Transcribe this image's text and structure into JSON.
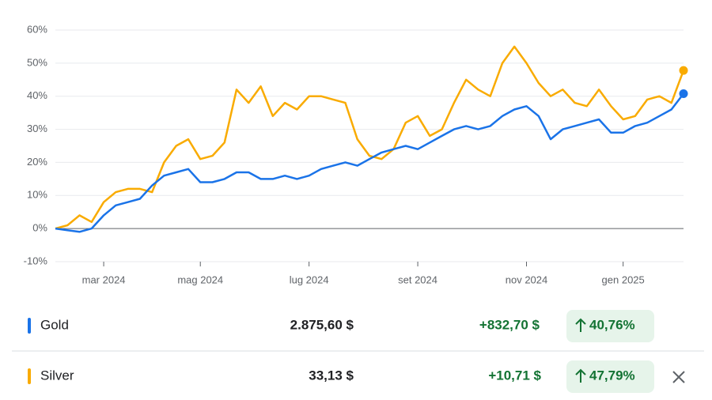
{
  "chart_data": {
    "type": "line",
    "categories": [
      null,
      null,
      null,
      null,
      "mar 2024",
      null,
      null,
      null,
      null,
      null,
      null,
      null,
      "mag 2024",
      null,
      null,
      null,
      null,
      null,
      null,
      null,
      null,
      "lug 2024",
      null,
      null,
      null,
      null,
      null,
      null,
      null,
      null,
      "set 2024",
      null,
      null,
      null,
      null,
      null,
      null,
      null,
      null,
      "nov 2024",
      null,
      null,
      null,
      null,
      null,
      null,
      null,
      "gen 2025",
      null,
      null,
      null,
      null,
      null
    ],
    "series": [
      {
        "name": "Gold",
        "color": "#1a73e8",
        "values": [
          0,
          -0.5,
          -1,
          0,
          4,
          7,
          8,
          9,
          13,
          16,
          17,
          18,
          14,
          14,
          15,
          17,
          17,
          15,
          15,
          16,
          15,
          16,
          18,
          19,
          20,
          19,
          21,
          23,
          24,
          25,
          24,
          26,
          28,
          30,
          31,
          30,
          31,
          34,
          36,
          37,
          34,
          27,
          30,
          31,
          32,
          33,
          29,
          29,
          31,
          32,
          34,
          36,
          40.76
        ]
      },
      {
        "name": "Silver",
        "color": "#f9ab00",
        "values": [
          0,
          1,
          4,
          2,
          8,
          11,
          12,
          12,
          11,
          20,
          25,
          27,
          21,
          22,
          26,
          42,
          38,
          43,
          34,
          38,
          36,
          40,
          40,
          39,
          38,
          27,
          22,
          21,
          24,
          32,
          34,
          28,
          30,
          38,
          45,
          42,
          40,
          50,
          55,
          50,
          44,
          40,
          42,
          38,
          37,
          42,
          37,
          33,
          34,
          39,
          40,
          38,
          47.79
        ]
      }
    ],
    "ylim": [
      -10,
      60
    ],
    "yticks": [
      {
        "value": -10,
        "label": "-10%"
      },
      {
        "value": 0,
        "label": "0%"
      },
      {
        "value": 10,
        "label": "10%"
      },
      {
        "value": 20,
        "label": "20%"
      },
      {
        "value": 30,
        "label": "30%"
      },
      {
        "value": 40,
        "label": "40%"
      },
      {
        "value": 50,
        "label": "50%"
      },
      {
        "value": 60,
        "label": "60%"
      }
    ],
    "grid": true
  },
  "summary": [
    {
      "price": "2.875,60 $",
      "change": "+832,70 $",
      "change_percent": "40,76%"
    },
    {
      "price": "33,13 $",
      "change": "+10,71 $",
      "change_percent": "47,79%"
    }
  ]
}
